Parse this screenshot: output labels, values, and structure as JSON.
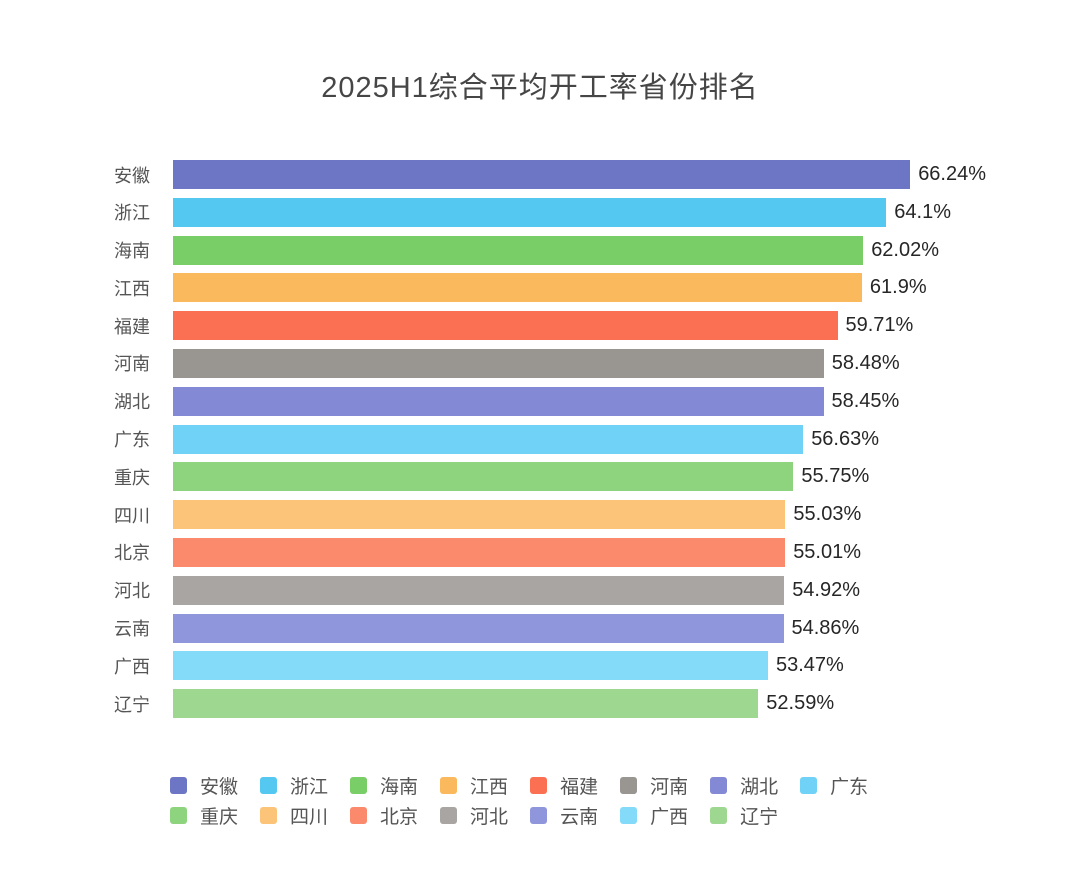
{
  "page": {
    "background": "#ffffff"
  },
  "chart_data": {
    "type": "bar",
    "orientation": "horizontal",
    "title": "2025H1综合平均开工率省份排名",
    "categories": [
      "安徽",
      "浙江",
      "海南",
      "江西",
      "福建",
      "河南",
      "湖北",
      "广东",
      "重庆",
      "四川",
      "北京",
      "河北",
      "云南",
      "广西",
      "辽宁"
    ],
    "values": [
      66.24,
      64.1,
      62.02,
      61.9,
      59.71,
      58.48,
      58.45,
      56.63,
      55.75,
      55.03,
      55.01,
      54.92,
      54.86,
      53.47,
      52.59
    ],
    "value_labels": [
      "66.24%",
      "64.1%",
      "62.02%",
      "61.9%",
      "59.71%",
      "58.48%",
      "58.45%",
      "56.63%",
      "55.75%",
      "55.03%",
      "55.01%",
      "54.92%",
      "54.86%",
      "53.47%",
      "52.59%"
    ],
    "bar_colors": [
      "#6D76C5",
      "#55C8F2",
      "#79CE68",
      "#FBB95D",
      "#FB7052",
      "#999591",
      "#8389D4",
      "#70D2F7",
      "#8ED47F",
      "#FCC478",
      "#FB8A6D",
      "#A9A5A2",
      "#9096DC",
      "#84DBF9",
      "#9ED78F"
    ],
    "xlim": [
      0,
      70
    ],
    "grid": false,
    "legend_position": "bottom",
    "legend": [
      "安徽",
      "浙江",
      "海南",
      "江西",
      "福建",
      "河南",
      "湖北",
      "广东",
      "重庆",
      "四川",
      "北京",
      "河北",
      "云南",
      "广西",
      "辽宁"
    ],
    "text_colors": {
      "title": "#464646",
      "category": "#555555",
      "value": "#262626",
      "legend": "#555555"
    }
  }
}
